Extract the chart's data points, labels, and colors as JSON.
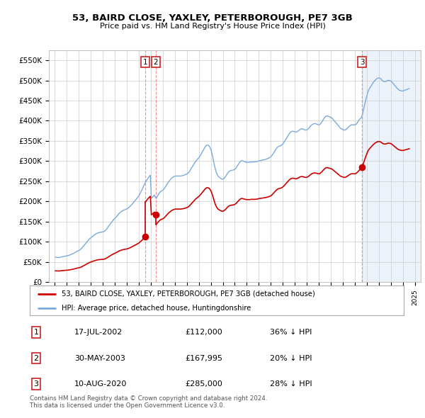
{
  "title": "53, BAIRD CLOSE, YAXLEY, PETERBOROUGH, PE7 3GB",
  "subtitle": "Price paid vs. HM Land Registry's House Price Index (HPI)",
  "ylabel_ticks": [
    "£0",
    "£50K",
    "£100K",
    "£150K",
    "£200K",
    "£250K",
    "£300K",
    "£350K",
    "£400K",
    "£450K",
    "£500K",
    "£550K"
  ],
  "ylim": [
    0,
    575000
  ],
  "xlim_start": 1994.5,
  "xlim_end": 2025.5,
  "hpi_color": "#7aaadd",
  "hpi_fill_color": "#ddeeff",
  "price_color": "#cc0000",
  "sale_dates_decimal": [
    2002.54,
    2003.41,
    2020.61
  ],
  "sale_prices": [
    112000,
    167995,
    285000
  ],
  "sale_labels": [
    "1",
    "2",
    "3"
  ],
  "legend_label_red": "53, BAIRD CLOSE, YAXLEY, PETERBOROUGH, PE7 3GB (detached house)",
  "legend_label_blue": "HPI: Average price, detached house, Huntingdonshire",
  "table_data": [
    [
      "1",
      "17-JUL-2002",
      "£112,000",
      "36% ↓ HPI"
    ],
    [
      "2",
      "30-MAY-2003",
      "£167,995",
      "20% ↓ HPI"
    ],
    [
      "3",
      "10-AUG-2020",
      "£285,000",
      "28% ↓ HPI"
    ]
  ],
  "footnote": "Contains HM Land Registry data © Crown copyright and database right 2024.\nThis data is licensed under the Open Government Licence v3.0.",
  "background_color": "#ffffff",
  "grid_color": "#cccccc",
  "hpi_monthly_years": [
    1995.042,
    1995.125,
    1995.208,
    1995.292,
    1995.375,
    1995.458,
    1995.542,
    1995.625,
    1995.708,
    1995.792,
    1995.875,
    1995.958,
    1996.042,
    1996.125,
    1996.208,
    1996.292,
    1996.375,
    1996.458,
    1996.542,
    1996.625,
    1996.708,
    1996.792,
    1996.875,
    1996.958,
    1997.042,
    1997.125,
    1997.208,
    1997.292,
    1997.375,
    1997.458,
    1997.542,
    1997.625,
    1997.708,
    1997.792,
    1997.875,
    1997.958,
    1998.042,
    1998.125,
    1998.208,
    1998.292,
    1998.375,
    1998.458,
    1998.542,
    1998.625,
    1998.708,
    1998.792,
    1998.875,
    1998.958,
    1999.042,
    1999.125,
    1999.208,
    1999.292,
    1999.375,
    1999.458,
    1999.542,
    1999.625,
    1999.708,
    1999.792,
    1999.875,
    1999.958,
    2000.042,
    2000.125,
    2000.208,
    2000.292,
    2000.375,
    2000.458,
    2000.542,
    2000.625,
    2000.708,
    2000.792,
    2000.875,
    2000.958,
    2001.042,
    2001.125,
    2001.208,
    2001.292,
    2001.375,
    2001.458,
    2001.542,
    2001.625,
    2001.708,
    2001.792,
    2001.875,
    2001.958,
    2002.042,
    2002.125,
    2002.208,
    2002.292,
    2002.375,
    2002.458,
    2002.542,
    2002.625,
    2002.708,
    2002.792,
    2002.875,
    2002.958,
    2003.042,
    2003.125,
    2003.208,
    2003.292,
    2003.375,
    2003.458,
    2003.542,
    2003.625,
    2003.708,
    2003.792,
    2003.875,
    2003.958,
    2004.042,
    2004.125,
    2004.208,
    2004.292,
    2004.375,
    2004.458,
    2004.542,
    2004.625,
    2004.708,
    2004.792,
    2004.875,
    2004.958,
    2005.042,
    2005.125,
    2005.208,
    2005.292,
    2005.375,
    2005.458,
    2005.542,
    2005.625,
    2005.708,
    2005.792,
    2005.875,
    2005.958,
    2006.042,
    2006.125,
    2006.208,
    2006.292,
    2006.375,
    2006.458,
    2006.542,
    2006.625,
    2006.708,
    2006.792,
    2006.875,
    2006.958,
    2007.042,
    2007.125,
    2007.208,
    2007.292,
    2007.375,
    2007.458,
    2007.542,
    2007.625,
    2007.708,
    2007.792,
    2007.875,
    2007.958,
    2008.042,
    2008.125,
    2008.208,
    2008.292,
    2008.375,
    2008.458,
    2008.542,
    2008.625,
    2008.708,
    2008.792,
    2008.875,
    2008.958,
    2009.042,
    2009.125,
    2009.208,
    2009.292,
    2009.375,
    2009.458,
    2009.542,
    2009.625,
    2009.708,
    2009.792,
    2009.875,
    2009.958,
    2010.042,
    2010.125,
    2010.208,
    2010.292,
    2010.375,
    2010.458,
    2010.542,
    2010.625,
    2010.708,
    2010.792,
    2010.875,
    2010.958,
    2011.042,
    2011.125,
    2011.208,
    2011.292,
    2011.375,
    2011.458,
    2011.542,
    2011.625,
    2011.708,
    2011.792,
    2011.875,
    2011.958,
    2012.042,
    2012.125,
    2012.208,
    2012.292,
    2012.375,
    2012.458,
    2012.542,
    2012.625,
    2012.708,
    2012.792,
    2012.875,
    2012.958,
    2013.042,
    2013.125,
    2013.208,
    2013.292,
    2013.375,
    2013.458,
    2013.542,
    2013.625,
    2013.708,
    2013.792,
    2013.875,
    2013.958,
    2014.042,
    2014.125,
    2014.208,
    2014.292,
    2014.375,
    2014.458,
    2014.542,
    2014.625,
    2014.708,
    2014.792,
    2014.875,
    2014.958,
    2015.042,
    2015.125,
    2015.208,
    2015.292,
    2015.375,
    2015.458,
    2015.542,
    2015.625,
    2015.708,
    2015.792,
    2015.875,
    2015.958,
    2016.042,
    2016.125,
    2016.208,
    2016.292,
    2016.375,
    2016.458,
    2016.542,
    2016.625,
    2016.708,
    2016.792,
    2016.875,
    2016.958,
    2017.042,
    2017.125,
    2017.208,
    2017.292,
    2017.375,
    2017.458,
    2017.542,
    2017.625,
    2017.708,
    2017.792,
    2017.875,
    2017.958,
    2018.042,
    2018.125,
    2018.208,
    2018.292,
    2018.375,
    2018.458,
    2018.542,
    2018.625,
    2018.708,
    2018.792,
    2018.875,
    2018.958,
    2019.042,
    2019.125,
    2019.208,
    2019.292,
    2019.375,
    2019.458,
    2019.542,
    2019.625,
    2019.708,
    2019.792,
    2019.875,
    2019.958,
    2020.042,
    2020.125,
    2020.208,
    2020.292,
    2020.375,
    2020.458,
    2020.542,
    2020.625,
    2020.708,
    2020.792,
    2020.875,
    2020.958,
    2021.042,
    2021.125,
    2021.208,
    2021.292,
    2021.375,
    2021.458,
    2021.542,
    2021.625,
    2021.708,
    2021.792,
    2021.875,
    2021.958,
    2022.042,
    2022.125,
    2022.208,
    2022.292,
    2022.375,
    2022.458,
    2022.542,
    2022.625,
    2022.708,
    2022.792,
    2022.875,
    2022.958,
    2023.042,
    2023.125,
    2023.208,
    2023.292,
    2023.375,
    2023.458,
    2023.542,
    2023.625,
    2023.708,
    2023.792,
    2023.875,
    2023.958,
    2024.042,
    2024.125,
    2024.208,
    2024.292,
    2024.375,
    2024.458,
    2024.542
  ],
  "hpi_monthly_values": [
    62000,
    61500,
    61200,
    61000,
    61200,
    61800,
    62500,
    63000,
    63500,
    64000,
    64500,
    65000,
    65500,
    66000,
    67000,
    68000,
    69000,
    70000,
    71000,
    72500,
    74000,
    75500,
    77000,
    78000,
    79000,
    81000,
    83000,
    86000,
    89000,
    92000,
    95000,
    98000,
    101000,
    104000,
    107000,
    109000,
    111000,
    113000,
    115000,
    117000,
    118500,
    120000,
    121500,
    122500,
    123000,
    123500,
    124000,
    124500,
    125000,
    126000,
    128000,
    131000,
    134000,
    138000,
    141000,
    145000,
    148000,
    151000,
    154000,
    157000,
    159000,
    162000,
    165000,
    168000,
    171000,
    173000,
    175000,
    176500,
    178000,
    179000,
    180000,
    181000,
    182000,
    184000,
    186000,
    189000,
    191000,
    194000,
    197000,
    200000,
    203000,
    206000,
    209000,
    212000,
    216000,
    221000,
    226000,
    231000,
    237000,
    242000,
    247000,
    251000,
    255000,
    259000,
    262000,
    265000,
    208000,
    210000,
    213000,
    216000,
    210000,
    208000,
    213000,
    217000,
    221000,
    224000,
    226000,
    227000,
    229000,
    232000,
    236000,
    240000,
    244000,
    248000,
    251000,
    254000,
    257000,
    259000,
    261000,
    262000,
    263000,
    263000,
    263000,
    263000,
    263000,
    263000,
    263500,
    264000,
    264500,
    265500,
    266500,
    267500,
    269000,
    271000,
    274000,
    278000,
    282000,
    286000,
    290000,
    294000,
    298000,
    301000,
    304000,
    307000,
    310000,
    314000,
    318000,
    323000,
    327000,
    332000,
    336000,
    339000,
    340000,
    339000,
    337000,
    332000,
    325000,
    315000,
    303000,
    291000,
    280000,
    272000,
    266000,
    262000,
    260000,
    258000,
    256000,
    255000,
    256000,
    258000,
    261000,
    265000,
    269000,
    272000,
    275000,
    276000,
    277000,
    277500,
    278000,
    279000,
    281000,
    284000,
    288000,
    292000,
    296000,
    299000,
    301000,
    301000,
    300000,
    299000,
    298000,
    297000,
    297000,
    297000,
    297000,
    297500,
    298000,
    298000,
    298000,
    298000,
    298000,
    298500,
    299000,
    300000,
    301000,
    301500,
    302000,
    302500,
    303000,
    303500,
    304000,
    305000,
    306000,
    307000,
    308000,
    310000,
    312000,
    315000,
    319000,
    323000,
    327000,
    331000,
    334000,
    336000,
    337000,
    338000,
    339000,
    341000,
    344000,
    348000,
    352000,
    356000,
    360000,
    364000,
    368000,
    371000,
    373000,
    374000,
    374000,
    373000,
    372000,
    372000,
    373000,
    375000,
    377000,
    379000,
    380000,
    380000,
    379000,
    378000,
    377000,
    377000,
    378000,
    380000,
    383000,
    386000,
    389000,
    391000,
    392000,
    393000,
    393000,
    392000,
    391000,
    390000,
    390000,
    392000,
    395000,
    399000,
    403000,
    407000,
    410000,
    412000,
    412000,
    411000,
    410000,
    409000,
    408000,
    406000,
    403000,
    400000,
    397000,
    394000,
    391000,
    388000,
    385000,
    382000,
    380000,
    379000,
    378000,
    377000,
    377000,
    379000,
    381000,
    384000,
    386000,
    388000,
    390000,
    390000,
    390000,
    390000,
    390000,
    392000,
    395000,
    399000,
    403000,
    405000,
    408000,
    415000,
    425000,
    436000,
    447000,
    457000,
    466000,
    474000,
    479000,
    483000,
    487000,
    491000,
    495000,
    498000,
    501000,
    503000,
    505000,
    506000,
    506000,
    505000,
    503000,
    500000,
    498000,
    497000,
    497000,
    498000,
    499000,
    500000,
    500000,
    499000,
    498000,
    495000,
    492000,
    489000,
    486000,
    483000,
    480000,
    478000,
    476000,
    475000,
    474000,
    474000,
    474000,
    475000,
    476000,
    477000,
    478000,
    479000,
    480000
  ]
}
